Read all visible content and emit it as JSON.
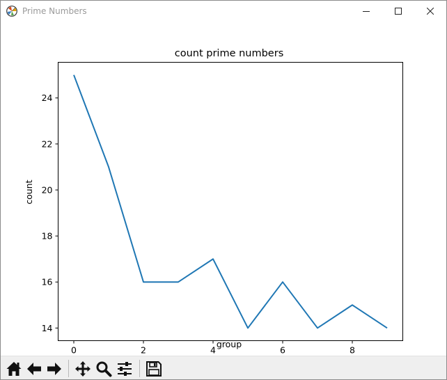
{
  "window": {
    "title": "Prime Numbers",
    "app_icon": "matplotlib-logo-icon",
    "controls": [
      "minimize-icon",
      "maximize-icon",
      "close-icon"
    ]
  },
  "chart_data": {
    "type": "line",
    "title": "count prime numbers",
    "xlabel": "group",
    "ylabel": "count",
    "x": [
      0,
      1,
      2,
      3,
      4,
      5,
      6,
      7,
      8,
      9
    ],
    "series": [
      {
        "values": [
          25,
          21,
          16,
          16,
          17,
          14,
          16,
          14,
          15,
          14
        ],
        "color": "#1f77b4"
      }
    ],
    "xlim": [
      -0.45,
      9.45
    ],
    "ylim": [
      13.45,
      25.55
    ],
    "xticks": [
      "0",
      "2",
      "4",
      "6",
      "8"
    ],
    "yticks": [
      "14",
      "16",
      "18",
      "20",
      "22",
      "24"
    ],
    "grid": false
  },
  "toolbar": {
    "buttons": [
      {
        "icon": "home-icon"
      },
      {
        "icon": "back-arrow-icon"
      },
      {
        "icon": "forward-arrow-icon"
      },
      {
        "icon": "pan-icon"
      },
      {
        "icon": "zoom-icon"
      },
      {
        "icon": "configure-subplots-icon"
      },
      {
        "icon": "save-icon"
      }
    ]
  }
}
